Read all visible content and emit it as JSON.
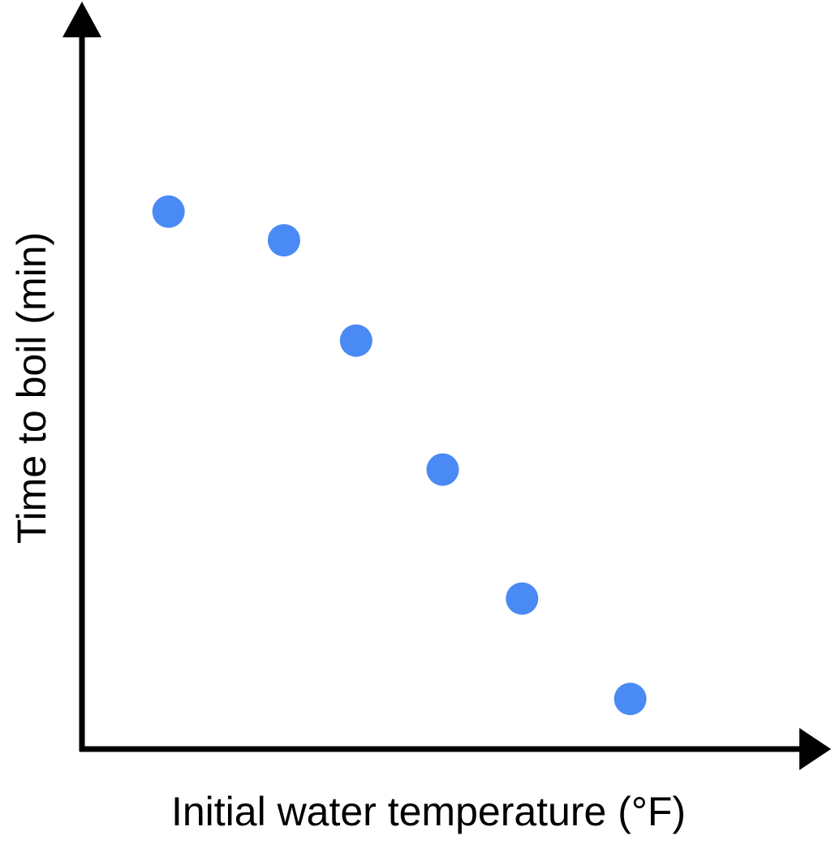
{
  "chart_data": {
    "type": "scatter",
    "title": "",
    "xlabel": "Initial water temperature (°F)",
    "ylabel": "Time to boil (min)",
    "xlim": [
      0,
      10
    ],
    "ylim": [
      0,
      10
    ],
    "ticks_shown": false,
    "grid": false,
    "legend": "none",
    "point_color": "#4a8af4",
    "axis_color": "#000000",
    "points": [
      {
        "x": 1.2,
        "y": 7.5
      },
      {
        "x": 2.8,
        "y": 7.1
      },
      {
        "x": 3.8,
        "y": 5.7
      },
      {
        "x": 5.0,
        "y": 3.9
      },
      {
        "x": 6.1,
        "y": 2.1
      },
      {
        "x": 7.6,
        "y": 0.7
      }
    ]
  }
}
